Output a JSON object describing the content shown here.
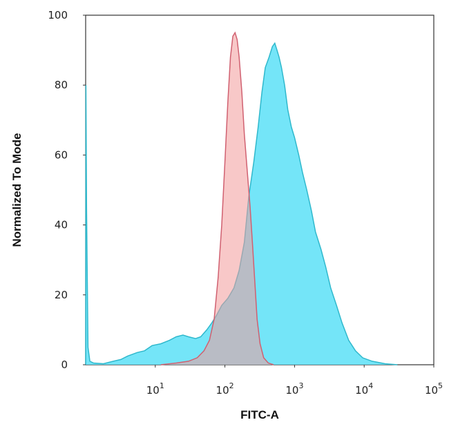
{
  "chart_data": {
    "type": "area",
    "xlabel": "FITC-A",
    "ylabel": "Normalized To Mode",
    "x_scale": "log",
    "xlim": [
      1,
      100000
    ],
    "ylim": [
      0,
      100
    ],
    "y_ticks": [
      0,
      20,
      40,
      60,
      80,
      100
    ],
    "x_ticks": [
      {
        "value": 10,
        "base": "10",
        "exp": "1"
      },
      {
        "value": 100,
        "base": "10",
        "exp": "2"
      },
      {
        "value": 1000,
        "base": "10",
        "exp": "3"
      },
      {
        "value": 10000,
        "base": "10",
        "exp": "4"
      },
      {
        "value": 100000,
        "base": "10",
        "exp": "5"
      }
    ],
    "grid": false,
    "series": [
      {
        "color": "#5ce1f7",
        "edge": "#2fb8cc",
        "points": [
          [
            1.0,
            0
          ],
          [
            1.01,
            80
          ],
          [
            1.03,
            45
          ],
          [
            1.08,
            5
          ],
          [
            1.15,
            1
          ],
          [
            1.3,
            0.5
          ],
          [
            1.8,
            0.3
          ],
          [
            2.5,
            1
          ],
          [
            3.2,
            1.5
          ],
          [
            4.0,
            2.5
          ],
          [
            5.5,
            3.5
          ],
          [
            7.0,
            4
          ],
          [
            9.0,
            5.5
          ],
          [
            12,
            6
          ],
          [
            16,
            7
          ],
          [
            20,
            8
          ],
          [
            25,
            8.5
          ],
          [
            30,
            8
          ],
          [
            38,
            7.5
          ],
          [
            45,
            8
          ],
          [
            55,
            10
          ],
          [
            65,
            12
          ],
          [
            75,
            14
          ],
          [
            90,
            17
          ],
          [
            110,
            19
          ],
          [
            135,
            22
          ],
          [
            160,
            27
          ],
          [
            190,
            35
          ],
          [
            220,
            48
          ],
          [
            260,
            58
          ],
          [
            300,
            68
          ],
          [
            340,
            78
          ],
          [
            380,
            85
          ],
          [
            430,
            88
          ],
          [
            480,
            91
          ],
          [
            520,
            92
          ],
          [
            560,
            90
          ],
          [
            600,
            88
          ],
          [
            650,
            85
          ],
          [
            720,
            80
          ],
          [
            800,
            73
          ],
          [
            900,
            68
          ],
          [
            1000,
            65
          ],
          [
            1150,
            60
          ],
          [
            1300,
            55
          ],
          [
            1500,
            50
          ],
          [
            1750,
            44
          ],
          [
            2000,
            38
          ],
          [
            2400,
            33
          ],
          [
            2800,
            28
          ],
          [
            3300,
            22
          ],
          [
            4000,
            17
          ],
          [
            4800,
            12
          ],
          [
            6000,
            7
          ],
          [
            7500,
            4
          ],
          [
            9500,
            2
          ],
          [
            13000,
            1
          ],
          [
            20000,
            0.3
          ],
          [
            30000,
            0
          ]
        ]
      },
      {
        "color": "#f39a9a",
        "edge": "#d06070",
        "points": [
          [
            12,
            0
          ],
          [
            20,
            0.5
          ],
          [
            30,
            1
          ],
          [
            40,
            2
          ],
          [
            50,
            4
          ],
          [
            60,
            7
          ],
          [
            70,
            13
          ],
          [
            80,
            25
          ],
          [
            90,
            40
          ],
          [
            100,
            58
          ],
          [
            110,
            75
          ],
          [
            120,
            88
          ],
          [
            130,
            94
          ],
          [
            140,
            95
          ],
          [
            150,
            93
          ],
          [
            160,
            88
          ],
          [
            175,
            78
          ],
          [
            190,
            66
          ],
          [
            210,
            55
          ],
          [
            230,
            45
          ],
          [
            250,
            34
          ],
          [
            270,
            23
          ],
          [
            290,
            13
          ],
          [
            320,
            6
          ],
          [
            360,
            2
          ],
          [
            420,
            0.5
          ],
          [
            500,
            0
          ]
        ]
      }
    ]
  }
}
